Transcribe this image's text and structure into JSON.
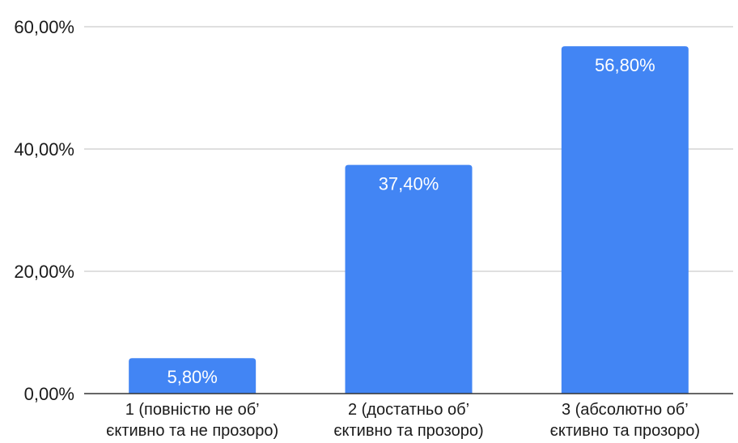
{
  "chart_data": {
    "type": "bar",
    "categories": [
      [
        "1 (повністю не об’",
        "єктивно та не прозоро)"
      ],
      [
        "2 (достатньо об’",
        "єктивно та прозоро)"
      ],
      [
        "3 (абсолютно об’",
        "єктивно та прозоро)"
      ]
    ],
    "values": [
      5.8,
      37.4,
      56.8
    ],
    "data_labels": [
      "5,80%",
      "37,40%",
      "56,80%"
    ],
    "ylim": [
      0,
      60
    ],
    "yticks": [
      0,
      20,
      40,
      60
    ],
    "ytick_labels": [
      "0,00%",
      "20,00%",
      "40,00%",
      "60,00%"
    ],
    "grid": true,
    "legend": "none",
    "bar_color": "#4285f4",
    "grid_color": "#cccccc",
    "axis_color": "#333333"
  }
}
